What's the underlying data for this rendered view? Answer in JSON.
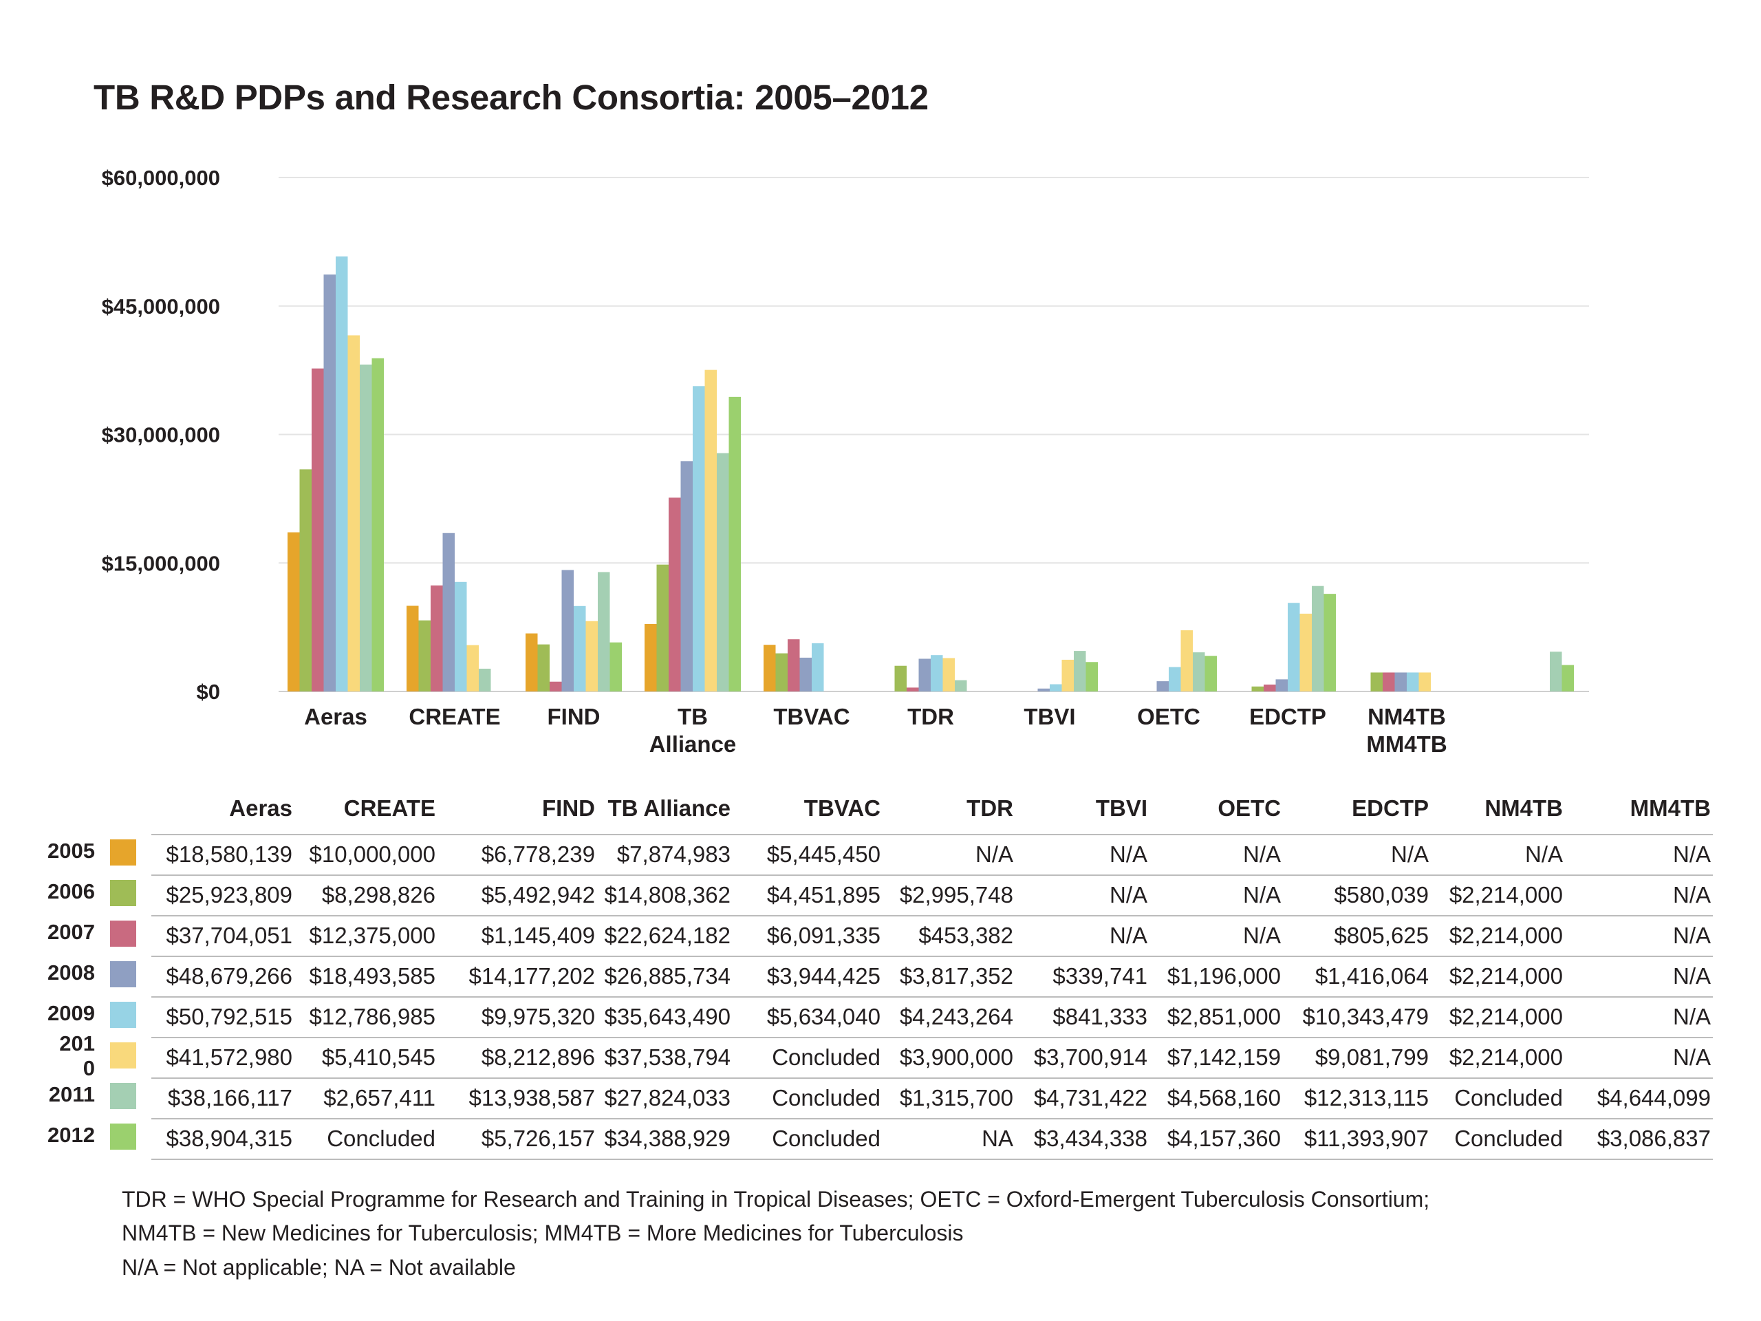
{
  "chart_data": {
    "type": "bar",
    "title": "TB R&D PDPs and Research Consortia: 2005–2012",
    "categories": [
      "Aeras",
      "CREATE",
      "FIND",
      "TB Alliance",
      "TBVAC",
      "TDR",
      "TBVI",
      "OETC",
      "EDCTP",
      "NM4TB",
      "MM4TB"
    ],
    "x_tick_labels": [
      "Aeras",
      "CREATE",
      "FIND",
      "TB Alliance",
      "TBVAC",
      "TDR",
      "TBVI",
      "OETC",
      "EDCTP",
      "NM4TB MM4TB",
      ""
    ],
    "y_tick_labels": [
      "$60,000,000",
      "$45,000,000",
      "$30,000,000",
      "$15,000,000",
      "$0"
    ],
    "ylim": [
      0,
      60000000
    ],
    "grid": true,
    "series": [
      {
        "name": "2005",
        "label": "2005",
        "color": "#e6a52b",
        "values": [
          18580139,
          10000000,
          6778239,
          7874983,
          5445450,
          null,
          null,
          null,
          null,
          null,
          null
        ]
      },
      {
        "name": "2006",
        "label": "2006",
        "color": "#9fbc56",
        "values": [
          25923809,
          8298826,
          5492942,
          14808362,
          4451895,
          2995748,
          null,
          null,
          580039,
          2214000,
          null
        ]
      },
      {
        "name": "2007",
        "label": "2007",
        "color": "#c96a80",
        "values": [
          37704051,
          12375000,
          1145409,
          22624182,
          6091335,
          453382,
          null,
          null,
          805625,
          2214000,
          null
        ]
      },
      {
        "name": "2008",
        "label": "2008",
        "color": "#8f9fc2",
        "values": [
          48679266,
          18493585,
          14177202,
          26885734,
          3944425,
          3817352,
          339741,
          1196000,
          1416064,
          2214000,
          null
        ]
      },
      {
        "name": "2009",
        "label": "2009",
        "color": "#97d3e5",
        "values": [
          50792515,
          12786985,
          9975320,
          35643490,
          5634040,
          4243264,
          841333,
          2851000,
          10343479,
          2214000,
          null
        ]
      },
      {
        "name": "2010",
        "label": "201\n0",
        "color": "#f9d97c",
        "values": [
          41572980,
          5410545,
          8212896,
          37538794,
          null,
          3900000,
          3700914,
          7142159,
          9081799,
          2214000,
          null
        ]
      },
      {
        "name": "2011",
        "label": "2011",
        "color": "#a4cfb3",
        "values": [
          38166117,
          2657411,
          13938587,
          27824033,
          null,
          1315700,
          4731422,
          4568160,
          12313115,
          null,
          4644099
        ]
      },
      {
        "name": "2012",
        "label": "2012",
        "color": "#9bd06e",
        "values": [
          38904315,
          null,
          5726157,
          34388929,
          null,
          null,
          3434338,
          4157360,
          11393907,
          null,
          3086837
        ]
      }
    ]
  },
  "table": {
    "headers": [
      "Aeras",
      "CREATE",
      "FIND",
      "TB Alliance",
      "TBVAC",
      "TDR",
      "TBVI",
      "OETC",
      "EDCTP",
      "NM4TB",
      "MM4TB"
    ],
    "rows": [
      [
        "$18,580,139",
        "$10,000,000",
        "$6,778,239",
        "$7,874,983",
        "$5,445,450",
        "N/A",
        "N/A",
        "N/A",
        "N/A",
        "N/A",
        "N/A"
      ],
      [
        "$25,923,809",
        "$8,298,826",
        "$5,492,942",
        "$14,808,362",
        "$4,451,895",
        "$2,995,748",
        "N/A",
        "N/A",
        "$580,039",
        "$2,214,000",
        "N/A"
      ],
      [
        "$37,704,051",
        "$12,375,000",
        "$1,145,409",
        "$22,624,182",
        "$6,091,335",
        "$453,382",
        "N/A",
        "N/A",
        "$805,625",
        "$2,214,000",
        "N/A"
      ],
      [
        "$48,679,266",
        "$18,493,585",
        "$14,177,202",
        "$26,885,734",
        "$3,944,425",
        "$3,817,352",
        "$339,741",
        "$1,196,000",
        "$1,416,064",
        "$2,214,000",
        "N/A"
      ],
      [
        "$50,792,515",
        "$12,786,985",
        "$9,975,320",
        "$35,643,490",
        "$5,634,040",
        "$4,243,264",
        "$841,333",
        "$2,851,000",
        "$10,343,479",
        "$2,214,000",
        "N/A"
      ],
      [
        "$41,572,980",
        "$5,410,545",
        "$8,212,896",
        "$37,538,794",
        "Concluded",
        "$3,900,000",
        "$3,700,914",
        "$7,142,159",
        "$9,081,799",
        "$2,214,000",
        "N/A"
      ],
      [
        "$38,166,117",
        "$2,657,411",
        "$13,938,587",
        "$27,824,033",
        "Concluded",
        "$1,315,700",
        "$4,731,422",
        "$4,568,160",
        "$12,313,115",
        "Concluded",
        "$4,644,099"
      ],
      [
        "$38,904,315",
        "Concluded",
        "$5,726,157",
        "$34,388,929",
        "Concluded",
        "NA",
        "$3,434,338",
        "$4,157,360",
        "$11,393,907",
        "Concluded",
        "$3,086,837"
      ]
    ]
  },
  "notes": {
    "line1": "TDR =  WHO Special Programme for Research and Training in Tropical Diseases; OETC = Oxford-Emergent Tuberculosis Consortium;",
    "line2": "NM4TB = New Medicines for Tuberculosis; MM4TB = More Medicines for Tuberculosis",
    "line3": "N/A = Not applicable; NA = Not available"
  }
}
